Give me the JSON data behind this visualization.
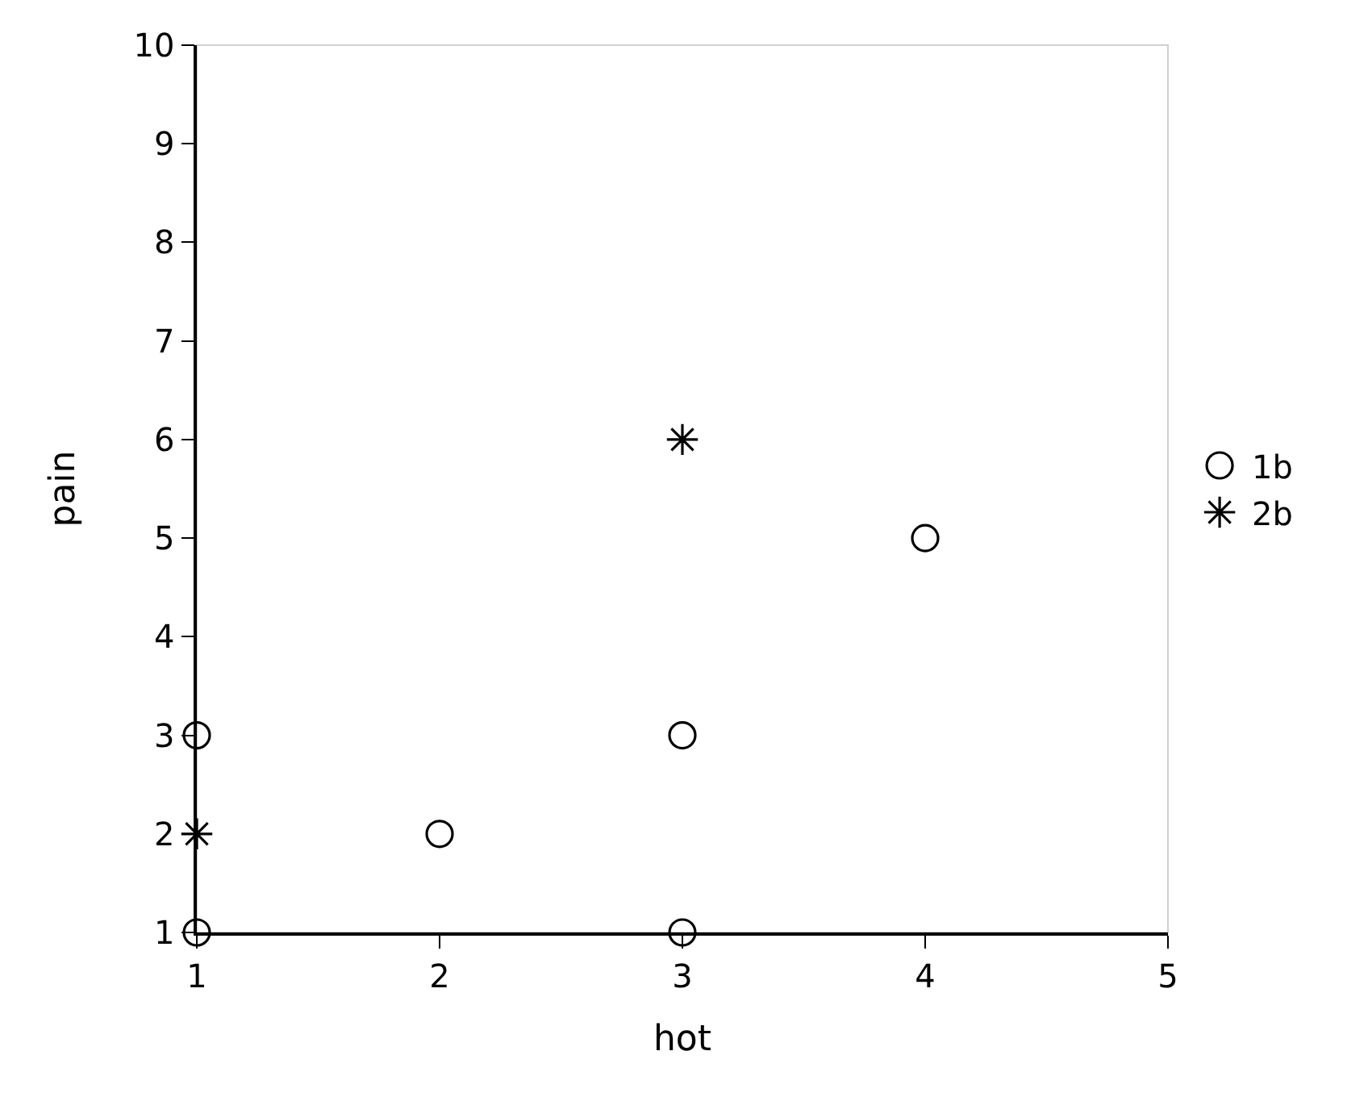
{
  "chart_data": {
    "type": "scatter",
    "xlabel": "hot",
    "ylabel": "pain",
    "xlim": [
      1,
      5
    ],
    "xticks": [
      1,
      2,
      3,
      4,
      5
    ],
    "ylim": [
      1,
      10
    ],
    "yticks": [
      1,
      2,
      3,
      4,
      5,
      6,
      7,
      8,
      9,
      10
    ],
    "grid": false,
    "legend": "right",
    "series": [
      {
        "name": "1b",
        "color": "#000000",
        "marker": "circle",
        "x": [
          1,
          1,
          2,
          3,
          3,
          4
        ],
        "values": [
          1,
          3,
          2,
          1,
          3,
          5
        ]
      },
      {
        "name": "2b",
        "color": "#000000",
        "marker": "cross",
        "x": [
          1,
          3
        ],
        "values": [
          2,
          6
        ]
      }
    ]
  }
}
